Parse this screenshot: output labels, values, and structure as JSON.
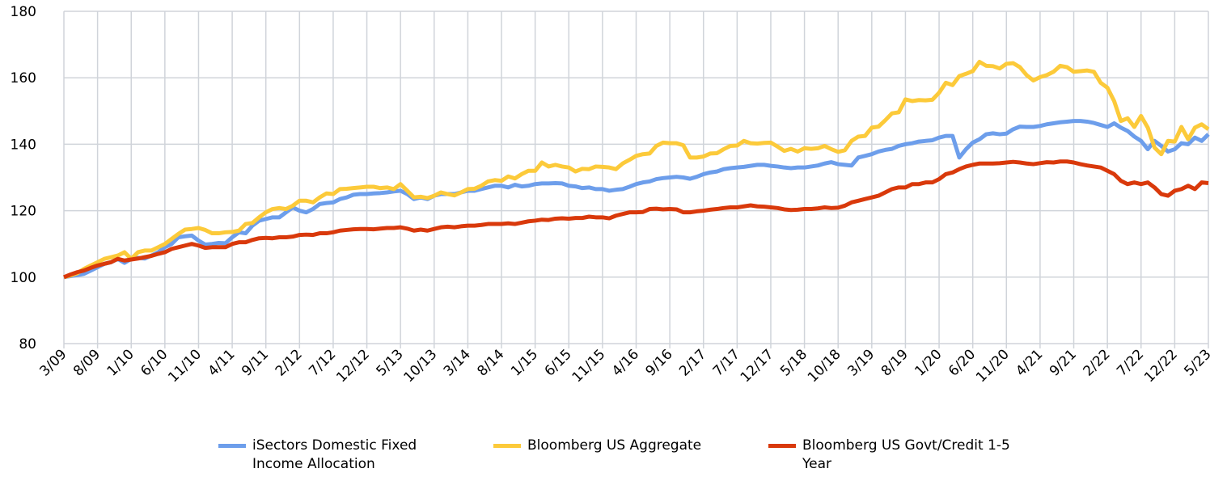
{
  "chart_data": {
    "type": "line",
    "categories": [
      "3/09",
      null,
      null,
      null,
      null,
      "8/09",
      null,
      null,
      null,
      null,
      "1/10",
      null,
      null,
      null,
      null,
      "6/10",
      null,
      null,
      null,
      null,
      "11/10",
      null,
      null,
      null,
      null,
      "4/11",
      null,
      null,
      null,
      null,
      "9/11",
      null,
      null,
      null,
      null,
      "2/12",
      null,
      null,
      null,
      null,
      "7/12",
      null,
      null,
      null,
      null,
      "12/12",
      null,
      null,
      null,
      null,
      "5/13",
      null,
      null,
      null,
      null,
      "10/13",
      null,
      null,
      null,
      null,
      "3/14",
      null,
      null,
      null,
      null,
      "8/14",
      null,
      null,
      null,
      null,
      "1/15",
      null,
      null,
      null,
      null,
      "6/15",
      null,
      null,
      null,
      null,
      "11/15",
      null,
      null,
      null,
      null,
      "4/16",
      null,
      null,
      null,
      null,
      "9/16",
      null,
      null,
      null,
      null,
      "2/17",
      null,
      null,
      null,
      null,
      "7/17",
      null,
      null,
      null,
      null,
      "12/17",
      null,
      null,
      null,
      null,
      "5/18",
      null,
      null,
      null,
      null,
      "10/18",
      null,
      null,
      null,
      null,
      "3/19",
      null,
      null,
      null,
      null,
      "8/19",
      null,
      null,
      null,
      null,
      "1/20",
      null,
      null,
      null,
      null,
      "6/20",
      null,
      null,
      null,
      null,
      "11/20",
      null,
      null,
      null,
      null,
      "4/21",
      null,
      null,
      null,
      null,
      "9/21",
      null,
      null,
      null,
      null,
      "2/22",
      null,
      null,
      null,
      null,
      "7/22",
      null,
      null,
      null,
      null,
      "12/22",
      null,
      null,
      null,
      null,
      "5/23"
    ],
    "series": [
      {
        "name": "iSectors Domestic Fixed Income Allocation",
        "color": "#6d9eeb",
        "values": [
          100,
          100.3,
          100.6,
          101,
          102,
          103,
          104,
          104.5,
          105.5,
          104.3,
          105.5,
          105.8,
          105.6,
          106.5,
          107.5,
          109,
          110,
          112,
          112.3,
          112.5,
          111,
          109.8,
          110,
          110.3,
          110.2,
          112,
          113.5,
          113.2,
          115.5,
          117,
          117.5,
          118,
          118,
          119.5,
          121,
          120,
          119.5,
          120.5,
          122,
          122.3,
          122.5,
          123.5,
          124,
          124.8,
          125,
          125,
          125.2,
          125.3,
          125.5,
          125.8,
          126,
          125,
          123.5,
          124,
          123.5,
          124.5,
          125,
          125,
          125,
          125.5,
          126,
          126,
          126.5,
          127,
          127.5,
          127.5,
          127,
          127.8,
          127.3,
          127.5,
          128,
          128.2,
          128.2,
          128.3,
          128.2,
          127.5,
          127.3,
          126.8,
          127,
          126.5,
          126.5,
          126,
          126.3,
          126.5,
          127.2,
          128,
          128.5,
          128.8,
          129.5,
          129.8,
          130,
          130.2,
          130,
          129.6,
          130.2,
          131,
          131.5,
          131.8,
          132.5,
          132.8,
          133,
          133.2,
          133.5,
          133.8,
          133.8,
          133.5,
          133.3,
          133,
          132.8,
          133,
          133,
          133.3,
          133.6,
          134.2,
          134.6,
          134,
          133.8,
          133.6,
          136,
          136.5,
          137,
          137.8,
          138.3,
          138.6,
          139.5,
          140,
          140.3,
          140.8,
          141,
          141.2,
          142,
          142.5,
          142.5,
          136,
          138.5,
          140.5,
          141.5,
          143,
          143.3,
          143,
          143.2,
          144.5,
          145.3,
          145.2,
          145.2,
          145.5,
          146,
          146.3,
          146.6,
          146.8,
          147,
          147,
          146.8,
          146.4,
          145.8,
          145.2,
          146.3,
          145,
          144,
          142.3,
          141,
          138.5,
          141,
          139.5,
          137.8,
          138.5,
          140.3,
          140,
          142,
          141,
          143
        ]
      },
      {
        "name": "Bloomberg US Aggregate",
        "color": "#fcca3a",
        "values": [
          100,
          100.5,
          101.2,
          102.5,
          103.5,
          104.5,
          105.5,
          106,
          106.5,
          107.5,
          105.5,
          107.5,
          108,
          108,
          109,
          110,
          111.5,
          113,
          114.3,
          114.5,
          114.8,
          114.2,
          113.2,
          113.2,
          113.5,
          113.6,
          114,
          116,
          116.3,
          118,
          119.5,
          120.5,
          120.8,
          120.5,
          121.5,
          123,
          123,
          122.5,
          124,
          125.2,
          125,
          126.5,
          126.6,
          126.8,
          127,
          127.2,
          127.2,
          126.8,
          127,
          126.5,
          128,
          126,
          124,
          124.2,
          123.8,
          124.5,
          125.5,
          125,
          124.6,
          125.5,
          126.5,
          126.6,
          127.5,
          128.8,
          129.2,
          129,
          130.3,
          129.7,
          131,
          132,
          132,
          134.5,
          133.3,
          133.8,
          133.3,
          133,
          131.8,
          132.6,
          132.5,
          133.3,
          133.2,
          133,
          132.5,
          134.2,
          135.3,
          136.5,
          137,
          137.2,
          139.5,
          140.5,
          140.3,
          140.3,
          139.7,
          136,
          136,
          136.3,
          137.2,
          137.3,
          138.5,
          139.5,
          139.6,
          141,
          140.3,
          140.2,
          140.4,
          140.5,
          139.3,
          138,
          138.6,
          137.8,
          138.8,
          138.6,
          138.8,
          139.5,
          138.5,
          137.7,
          138.2,
          141,
          142.3,
          142.5,
          145,
          145.3,
          147.2,
          149.3,
          149.6,
          153.5,
          153,
          153.3,
          153.2,
          153.4,
          155.5,
          158.5,
          157.8,
          160.5,
          161.2,
          162,
          164.8,
          163.6,
          163.5,
          162.8,
          164.2,
          164.4,
          163.2,
          160.8,
          159.2,
          160.2,
          160.8,
          161.8,
          163.6,
          163.2,
          161.8,
          162,
          162.2,
          161.8,
          158.5,
          157,
          153,
          147,
          147.8,
          145.2,
          148.5,
          145,
          139,
          137,
          141,
          140.8,
          145.2,
          141.5,
          145,
          146,
          144.5
        ]
      },
      {
        "name": "Bloomberg US Govt/Credit 1-5 Year",
        "color": "#d9390b",
        "values": [
          100,
          100.8,
          101.5,
          102,
          102.8,
          103.5,
          104,
          104.5,
          105.5,
          105,
          105.3,
          105.6,
          106,
          106.4,
          107,
          107.5,
          108.5,
          109,
          109.5,
          110,
          109.5,
          108.8,
          109,
          109,
          109,
          110,
          110.5,
          110.5,
          111.2,
          111.7,
          111.8,
          111.7,
          112,
          112,
          112.2,
          112.7,
          112.8,
          112.7,
          113.2,
          113.2,
          113.5,
          114,
          114.2,
          114.4,
          114.5,
          114.5,
          114.4,
          114.6,
          114.8,
          114.8,
          115,
          114.6,
          114,
          114.3,
          114,
          114.5,
          115,
          115.2,
          115,
          115.3,
          115.5,
          115.5,
          115.7,
          116,
          116,
          116,
          116.2,
          116,
          116.4,
          116.8,
          117,
          117.3,
          117.2,
          117.6,
          117.7,
          117.6,
          117.8,
          117.8,
          118.2,
          118,
          118,
          117.7,
          118.5,
          119,
          119.5,
          119.5,
          119.6,
          120.5,
          120.6,
          120.4,
          120.5,
          120.4,
          119.5,
          119.5,
          119.8,
          120,
          120.3,
          120.5,
          120.8,
          121,
          121,
          121.3,
          121.6,
          121.3,
          121.2,
          121,
          120.8,
          120.4,
          120.2,
          120.3,
          120.5,
          120.5,
          120.7,
          121,
          120.8,
          120.9,
          121.5,
          122.5,
          123,
          123.5,
          124,
          124.5,
          125.5,
          126.5,
          127,
          127,
          128,
          128,
          128.5,
          128.5,
          129.5,
          131,
          131.5,
          132.5,
          133.3,
          133.8,
          134.2,
          134.2,
          134.2,
          134.3,
          134.5,
          134.7,
          134.5,
          134.2,
          134,
          134.3,
          134.6,
          134.5,
          134.8,
          134.8,
          134.5,
          134,
          133.6,
          133.3,
          133,
          132,
          131,
          129,
          128,
          128.5,
          128,
          128.5,
          127,
          125,
          124.5,
          126,
          126.5,
          127.5,
          126.5,
          128.5,
          128.3
        ]
      }
    ],
    "ylim": [
      80,
      180
    ],
    "yticks": [
      80,
      100,
      120,
      140,
      160,
      180
    ],
    "grid": true,
    "legend": "bottom"
  }
}
